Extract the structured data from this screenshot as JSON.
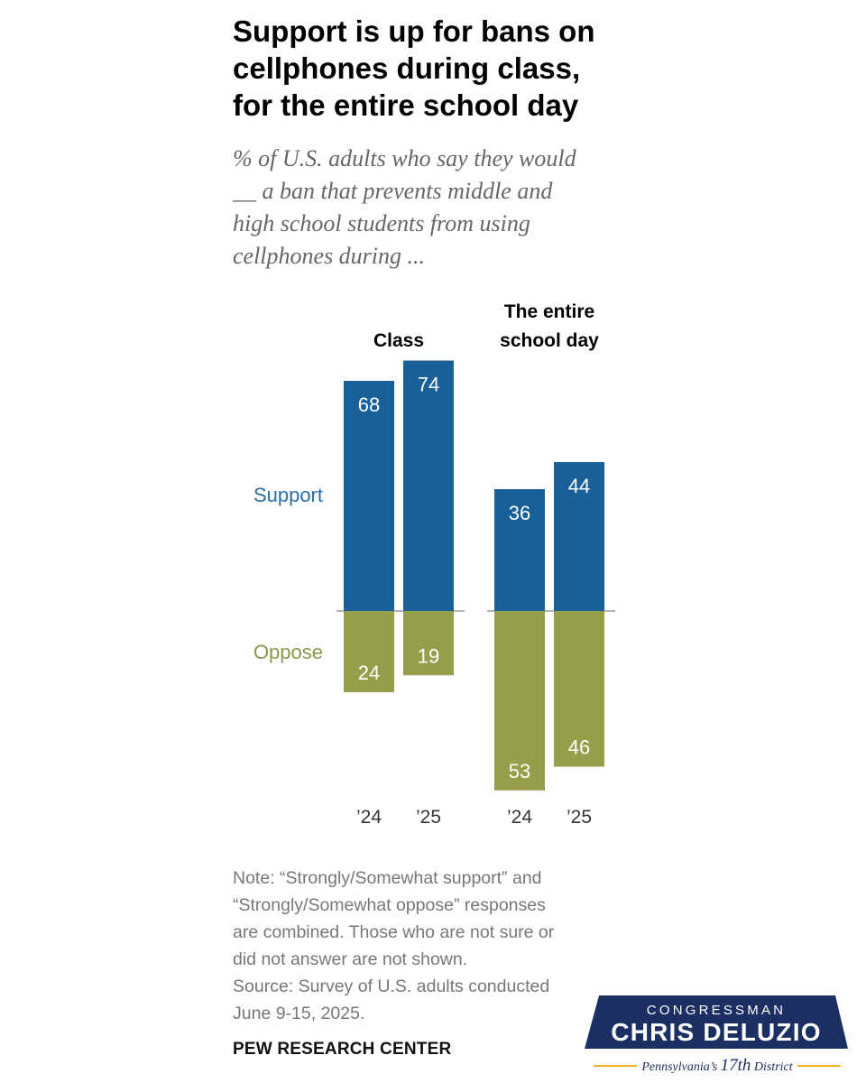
{
  "header": {
    "title_lines": [
      "Support is up for bans on",
      "cellphones during class,",
      "for the entire school day"
    ],
    "subtitle_lines": [
      "% of U.S. adults who say they would",
      "__ a ban that prevents middle and",
      "high school students from using",
      "cellphones during ..."
    ]
  },
  "chart_data": {
    "type": "bar",
    "stacking": "diverging",
    "title": "Support is up for bans on cellphones during class, for the entire school day",
    "groups": [
      {
        "label_lines": [
          "Class"
        ],
        "categories": [
          "’24",
          "’25"
        ]
      },
      {
        "label_lines": [
          "The entire",
          "school day"
        ],
        "categories": [
          "’24",
          "’25"
        ]
      }
    ],
    "series": [
      {
        "name": "Support",
        "direction": "up",
        "color": "#17609a",
        "values": [
          [
            68,
            74
          ],
          [
            36,
            44
          ]
        ]
      },
      {
        "name": "Oppose",
        "direction": "down",
        "color": "#969e4a",
        "values": [
          [
            24,
            19
          ],
          [
            53,
            46
          ]
        ]
      }
    ],
    "label_colors": {
      "Support": "#2a6fa8",
      "Oppose": "#8e9448"
    },
    "baseline_color": "#9a9a9a",
    "value_label_color": "#ffffff",
    "units": "%"
  },
  "footer": {
    "note_lines": [
      "Note: “Strongly/Somewhat support” and",
      "“Strongly/Somewhat oppose” responses",
      "are combined. Those who are not sure or",
      "did not answer are not shown.",
      "Source: Survey of U.S. adults conducted",
      "June 9-15, 2025."
    ],
    "source_org": "PEW RESEARCH CENTER"
  },
  "badge": {
    "line1": "CONGRESSMAN",
    "line2": "CHRIS DELUZIO",
    "tagline_prefix": "Pennsylvania’s ",
    "tagline_num": "17th",
    "tagline_suffix": " District",
    "colors": {
      "navy": "#1b2f63",
      "gold": "#f0b323",
      "white": "#ffffff"
    }
  }
}
